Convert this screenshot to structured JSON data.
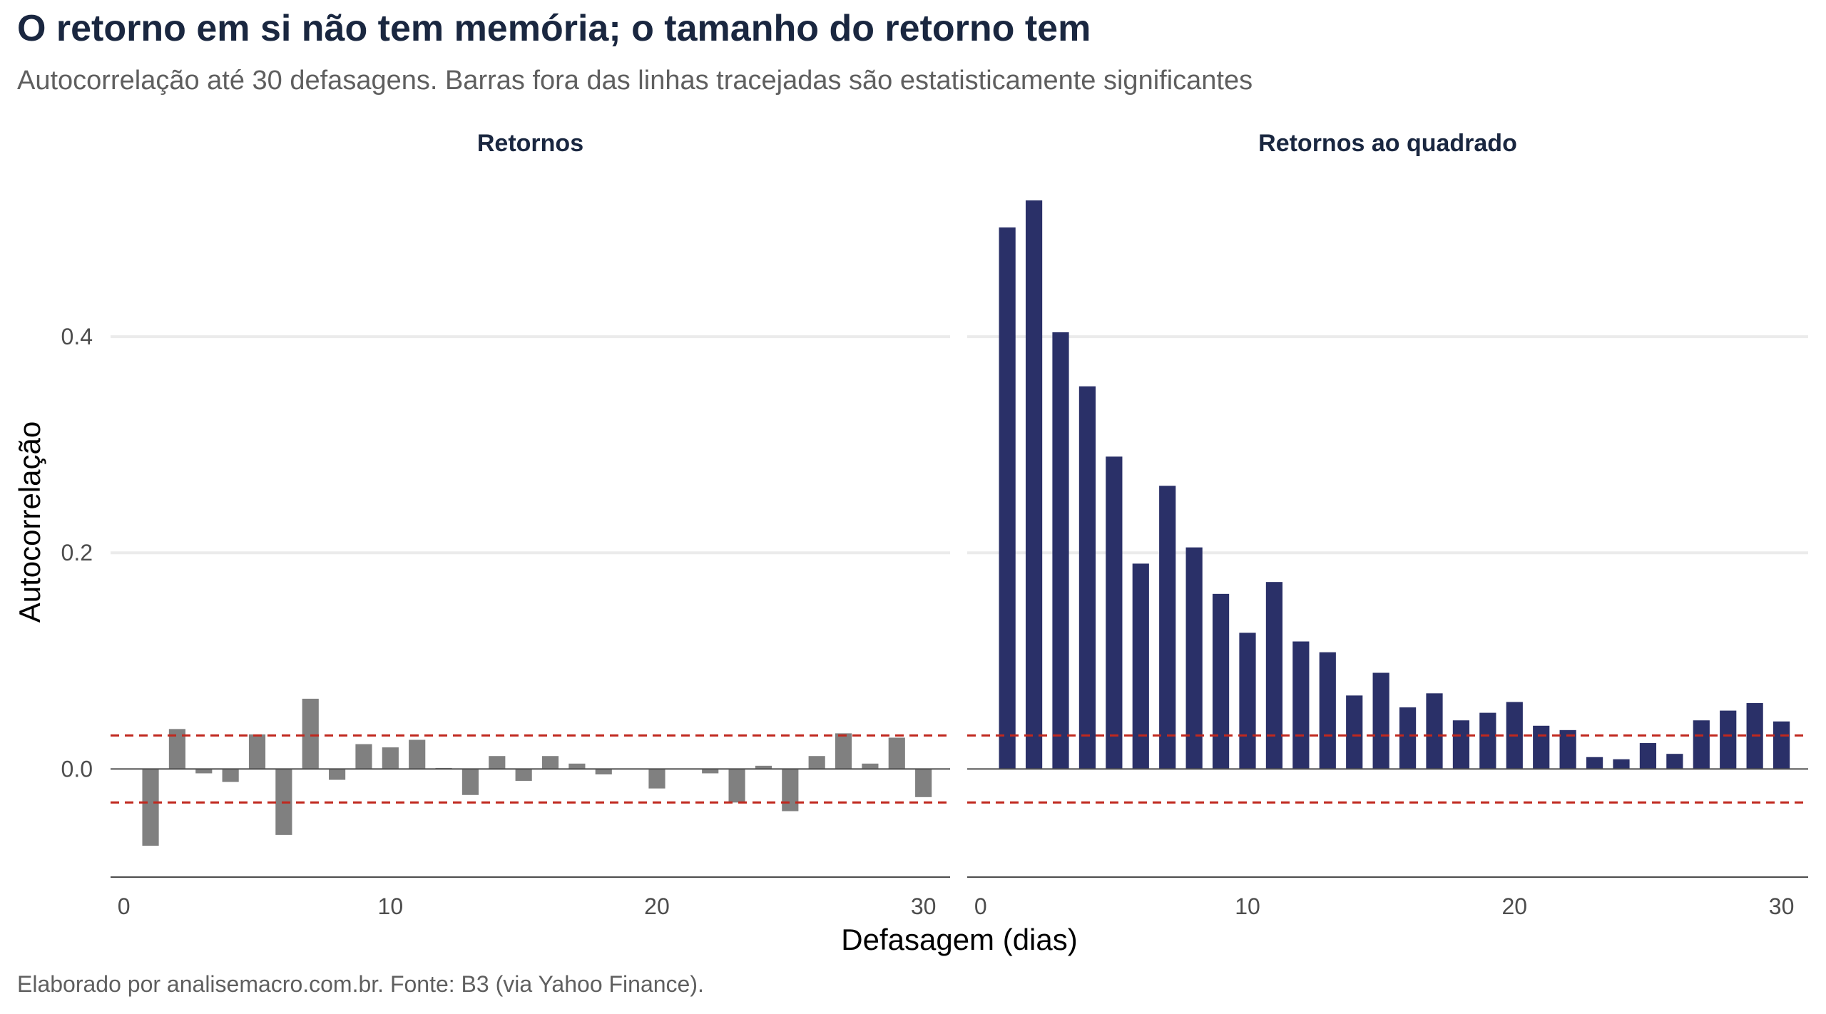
{
  "header": {
    "title": "O retorno em si não tem memória; o tamanho do retorno tem",
    "subtitle": "Autocorrelação até 30 defasagens. Barras fora das linhas tracejadas são estatisticamente significantes"
  },
  "caption": "Elaborado por analisemacro.com.br. Fonte: B3 (via Yahoo Finance).",
  "chart_data": {
    "type": "bar",
    "xlabel": "Defasagem (dias)",
    "ylabel": "Autocorrelação",
    "x_ticks": [
      0,
      10,
      20,
      30
    ],
    "y_ticks": [
      0.0,
      0.2,
      0.4
    ],
    "y_tick_labels": [
      "0.0",
      "0.2",
      "0.4"
    ],
    "xlim": [
      -0.5,
      31
    ],
    "ylim": [
      -0.1,
      0.53
    ],
    "confidence_band": 0.031,
    "grid": "horizontal major",
    "colors": {
      "returns": "#808080",
      "squared": "#2a3068",
      "band": "#c0281e"
    },
    "panels": [
      {
        "name": "Retornos",
        "color_key": "returns",
        "lags": [
          1,
          2,
          3,
          4,
          5,
          6,
          7,
          8,
          9,
          10,
          11,
          12,
          13,
          14,
          15,
          16,
          17,
          18,
          19,
          20,
          21,
          22,
          23,
          24,
          25,
          26,
          27,
          28,
          29,
          30
        ],
        "values": [
          -0.071,
          0.037,
          -0.004,
          -0.012,
          0.032,
          -0.061,
          0.065,
          -0.01,
          0.023,
          0.02,
          0.027,
          0.001,
          -0.024,
          0.012,
          -0.011,
          0.012,
          0.005,
          -0.005,
          0.0,
          -0.018,
          0.0,
          -0.004,
          -0.031,
          0.003,
          -0.039,
          0.012,
          0.033,
          0.005,
          0.029,
          -0.026
        ]
      },
      {
        "name": "Retornos ao quadrado",
        "color_key": "squared",
        "lags": [
          1,
          2,
          3,
          4,
          5,
          6,
          7,
          8,
          9,
          10,
          11,
          12,
          13,
          14,
          15,
          16,
          17,
          18,
          19,
          20,
          21,
          22,
          23,
          24,
          25,
          26,
          27,
          28,
          29,
          30
        ],
        "values": [
          0.501,
          0.526,
          0.404,
          0.354,
          0.289,
          0.19,
          0.262,
          0.205,
          0.162,
          0.126,
          0.173,
          0.118,
          0.108,
          0.068,
          0.089,
          0.057,
          0.07,
          0.045,
          0.052,
          0.062,
          0.04,
          0.036,
          0.011,
          0.009,
          0.024,
          0.014,
          0.045,
          0.054,
          0.061,
          0.044
        ]
      }
    ]
  }
}
